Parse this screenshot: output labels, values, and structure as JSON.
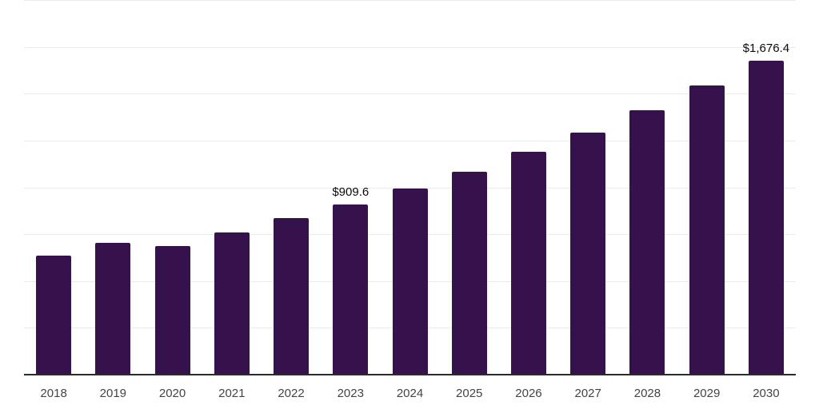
{
  "chart_data": {
    "type": "bar",
    "title": "",
    "xlabel": "",
    "ylabel": "",
    "categories": [
      "2018",
      "2019",
      "2020",
      "2021",
      "2022",
      "2023",
      "2024",
      "2025",
      "2026",
      "2027",
      "2028",
      "2029",
      "2030"
    ],
    "values": [
      633.9,
      703.2,
      687.5,
      757.9,
      833.8,
      909.6,
      994.8,
      1085.0,
      1188.7,
      1293.3,
      1411.2,
      1542.6,
      1676.4
    ],
    "data_labels": [
      {
        "category": "2023",
        "text": "$909.6"
      },
      {
        "category": "2030",
        "text": "$1,676.4"
      }
    ],
    "ylim": [
      0,
      2000
    ],
    "grid_step": 250,
    "grid": true,
    "legend": false,
    "colors": {
      "bar": "#35124c",
      "axis": "#2b2b2b",
      "gridline": "#ebebeb",
      "tick_label": "#444444",
      "data_label": "#0a0a0a",
      "background": "#ffffff"
    }
  }
}
